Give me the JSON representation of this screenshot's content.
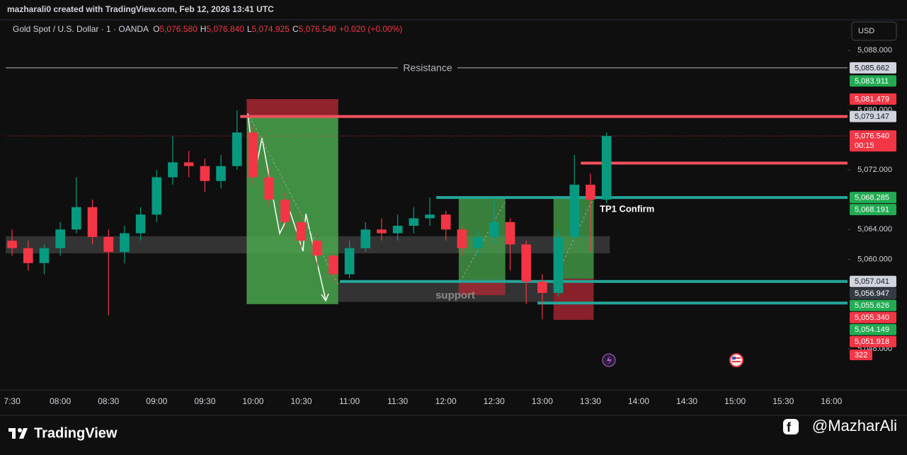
{
  "header": {
    "attribution": "mazharali0 created with TradingView.com, Feb 12, 2026 13:41 UTC"
  },
  "legend": {
    "symbol": "Gold Spot / U.S. Dollar · 1 · OANDA",
    "ohlc": [
      {
        "key": "O",
        "text": "5,076.580"
      },
      {
        "key": "H",
        "text": "5,076.840"
      },
      {
        "key": "L",
        "text": "5,074.925"
      },
      {
        "key": "C",
        "text": "5,076.540"
      }
    ],
    "change": "+0.020 (+0.00%)"
  },
  "currency": "USD",
  "footer": {
    "brand": "TradingView",
    "handle": "@MazharAli"
  },
  "chart_data": {
    "type": "candlestick",
    "x": [
      "07:30",
      "07:40",
      "07:50",
      "08:00",
      "08:10",
      "08:20",
      "08:30",
      "08:40",
      "08:50",
      "09:00",
      "09:10",
      "09:20",
      "09:30",
      "09:40",
      "09:50",
      "10:00",
      "10:10",
      "10:20",
      "10:30",
      "10:40",
      "10:50",
      "11:00",
      "11:10",
      "11:20",
      "11:30",
      "11:40",
      "11:50",
      "12:00",
      "12:10",
      "12:20",
      "12:30",
      "12:40",
      "12:50",
      "13:00",
      "13:10",
      "13:20",
      "13:30",
      "13:40"
    ],
    "open": [
      5062.5,
      5061.5,
      5059.5,
      5061.5,
      5064,
      5067,
      5063,
      5061,
      5063.5,
      5066,
      5071,
      5073,
      5072.5,
      5070.5,
      5072.5,
      5077,
      5071,
      5068,
      5065,
      5062.5,
      5060.5,
      5058,
      5061.5,
      5064,
      5063.5,
      5064.5,
      5065.5,
      5066,
      5064,
      5061.5,
      5063,
      5065,
      5062,
      5057,
      5055.5,
      5063,
      5070,
      5068
    ],
    "high": [
      5064,
      5062.5,
      5062,
      5065,
      5071,
      5068,
      5064,
      5064.5,
      5067,
      5072,
      5076.5,
      5074.5,
      5073.5,
      5074,
      5080,
      5078,
      5072.5,
      5069,
      5066.5,
      5063.5,
      5061,
      5062.5,
      5065,
      5065.5,
      5066,
      5067,
      5068.3,
      5066.5,
      5064.5,
      5064,
      5068.3,
      5065.5,
      5062.5,
      5058,
      5064,
      5074,
      5071.5,
      5077
    ],
    "low": [
      5060.5,
      5058.5,
      5058,
      5060.5,
      5063.5,
      5062,
      5052.5,
      5059.5,
      5062.5,
      5065,
      5070,
      5071,
      5069,
      5069.5,
      5072,
      5070,
      5067,
      5064,
      5061.5,
      5059,
      5057,
      5057.5,
      5061,
      5062.5,
      5062.5,
      5063.5,
      5064.5,
      5062.5,
      5060.5,
      5060.5,
      5062,
      5058.5,
      5054,
      5052,
      5055,
      5062.5,
      5061,
      5067.5
    ],
    "close": [
      5061.5,
      5059.5,
      5061.5,
      5064,
      5067,
      5063,
      5061,
      5063.5,
      5066,
      5071,
      5073,
      5072.5,
      5070.5,
      5072.5,
      5077,
      5071,
      5068,
      5065,
      5062.5,
      5060.5,
      5058,
      5061.5,
      5064,
      5063.5,
      5064.5,
      5065.5,
      5066,
      5064,
      5061.5,
      5063,
      5065,
      5062,
      5057,
      5055.5,
      5063,
      5070,
      5068,
      5076.54
    ],
    "up_color": "#089981",
    "down_color": "#f23645",
    "xlim": [
      "07:26",
      "16:10"
    ],
    "ylim": [
      5042.6,
      5092.1
    ],
    "xticks": [
      "7:30",
      "08:00",
      "08:30",
      "09:00",
      "09:30",
      "10:00",
      "10:30",
      "11:00",
      "11:30",
      "12:00",
      "12:30",
      "13:00",
      "13:30",
      "14:00",
      "14:30",
      "15:00",
      "15:30",
      "16:00"
    ],
    "yticks": [
      {
        "value": 5088,
        "label": "5,088.000"
      },
      {
        "value": 5080,
        "label": "5,080.000"
      },
      {
        "value": 5072,
        "label": "5,072.000"
      },
      {
        "value": 5064,
        "label": "5,064.000"
      },
      {
        "value": 5060,
        "label": "5,060.000"
      },
      {
        "value": 5048,
        "label": "5,048.000"
      }
    ],
    "grid": false,
    "zones": [
      {
        "from": "07:26",
        "to": "13:42",
        "top": 5063.1,
        "bottom": 5060.8,
        "color": "rgba(120,120,120,0.35)"
      },
      {
        "from": "10:53",
        "to": "13:07",
        "top": 5056.9,
        "bottom": 5054.3,
        "color": "rgba(120,120,120,0.35)"
      },
      {
        "from": "09:56",
        "to": "10:53",
        "top": 5081.479,
        "bottom": 5079.147,
        "color": "rgba(178,40,51,0.8)"
      },
      {
        "from": "09:56",
        "to": "10:53",
        "top": 5079.147,
        "bottom": 5054.0,
        "color": "rgba(76,175,80,0.8)"
      },
      {
        "from": "12:08",
        "to": "12:37",
        "top": 5068.285,
        "bottom": 5057.041,
        "color": "rgba(76,175,80,0.7)"
      },
      {
        "from": "12:08",
        "to": "12:37",
        "top": 5057.041,
        "bottom": 5055.2,
        "color": "rgba(178,40,51,0.75)"
      },
      {
        "from": "13:07",
        "to": "13:32",
        "top": 5068.191,
        "bottom": 5057.4,
        "color": "rgba(76,175,80,0.7)"
      },
      {
        "from": "13:07",
        "to": "13:32",
        "top": 5057.4,
        "bottom": 5051.9,
        "color": "rgba(178,40,51,0.75)"
      }
    ],
    "levels": [
      {
        "price": 5085.662,
        "color": "#b2b5be",
        "width": 1
      },
      {
        "from": "09:52",
        "price": 5079.147,
        "color": "#f7525f",
        "width": 4
      },
      {
        "from": "13:24",
        "price": 5072.9,
        "color": "#f7525f",
        "width": 4
      },
      {
        "from": "11:54",
        "price": 5068.285,
        "color": "#26a69a",
        "width": 4
      },
      {
        "from": "10:54",
        "price": 5057.041,
        "color": "#26a69a",
        "width": 4
      },
      {
        "from": "12:57",
        "price": 5054.149,
        "color": "#26a69a",
        "width": 4
      }
    ],
    "price_labels": [
      {
        "value": 5085.662,
        "label": "5,085.662",
        "color": "#d1d4dc"
      },
      {
        "value": 5083.911,
        "label": "5,083.911",
        "color": "#22ab52"
      },
      {
        "value": 5081.479,
        "label": "5,081.479",
        "color": "#f23645"
      },
      {
        "value": 5079.147,
        "label": "5,079.147",
        "color": "#d1d4dc"
      },
      {
        "value": 5076.54,
        "label": "5,076.540",
        "color": "#f23645"
      },
      {
        "value": 5068.285,
        "label": "5,068.285",
        "color": "#22ab52"
      },
      {
        "value": 5068.191,
        "label": "5,068.191",
        "color": "#22ab52"
      },
      {
        "value": 5057.041,
        "label": "5,057.041",
        "color": "#d1d4dc"
      },
      {
        "value": 5056.947,
        "label": "5,056.947",
        "color": "#363a45"
      },
      {
        "value": 5055.626,
        "label": "5,055.626",
        "color": "#22ab52"
      },
      {
        "value": 5055.34,
        "label": "5,055.340",
        "color": "#f23645"
      },
      {
        "value": 5054.149,
        "label": "5,054.149",
        "color": "#22ab52"
      },
      {
        "value": 5051.918,
        "label": "5,051.918",
        "color": "#f23645"
      }
    ],
    "countdown": "00:15",
    "volume_last": 322,
    "annotations": [
      {
        "text": "Resistance"
      },
      {
        "text": "support"
      },
      {
        "text": "TP1 Confirm"
      }
    ]
  }
}
